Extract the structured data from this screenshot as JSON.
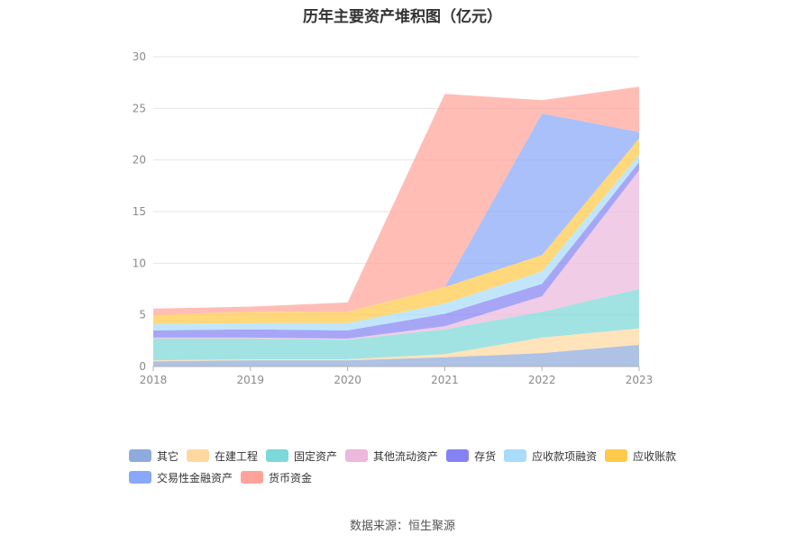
{
  "chart_data": {
    "type": "area",
    "stacked": true,
    "title": "历年主要资产堆积图（亿元）",
    "source": "数据来源：恒生聚源",
    "categories": [
      "2018",
      "2019",
      "2020",
      "2021",
      "2022",
      "2023"
    ],
    "ylim": [
      0,
      30
    ],
    "yticks": [
      "0",
      "5",
      "10",
      "15",
      "20",
      "25",
      "30"
    ],
    "grid": true,
    "legend_position": "bottom",
    "series": [
      {
        "name": "其它",
        "color": "#8faadc",
        "values": [
          0.5,
          0.6,
          0.6,
          0.9,
          1.3,
          2.1
        ]
      },
      {
        "name": "在建工程",
        "color": "#ffd89f",
        "values": [
          0.1,
          0.1,
          0.1,
          0.3,
          1.5,
          1.6
        ]
      },
      {
        "name": "固定资产",
        "color": "#7dd8d8",
        "values": [
          2.1,
          2.0,
          1.9,
          2.4,
          2.5,
          3.8
        ]
      },
      {
        "name": "其他流动资产",
        "color": "#ecb8dc",
        "values": [
          0.1,
          0.1,
          0.1,
          0.3,
          1.5,
          11.5
        ]
      },
      {
        "name": "存货",
        "color": "#8583f3",
        "values": [
          0.7,
          0.8,
          0.8,
          1.2,
          1.2,
          0.8
        ]
      },
      {
        "name": "应收款项融资",
        "color": "#a9dcf9",
        "values": [
          0.6,
          0.6,
          0.7,
          1.0,
          1.2,
          0.7
        ]
      },
      {
        "name": "应收账款",
        "color": "#ffc94a",
        "values": [
          0.9,
          1.1,
          1.1,
          1.6,
          1.6,
          1.6
        ]
      },
      {
        "name": "交易性金融资产",
        "color": "#88a8f9",
        "values": [
          0.0,
          0.0,
          0.0,
          0.0,
          13.7,
          0.6
        ]
      },
      {
        "name": "货币资金",
        "color": "#ffa39a",
        "values": [
          0.6,
          0.5,
          0.9,
          18.7,
          1.3,
          4.4
        ]
      }
    ]
  }
}
